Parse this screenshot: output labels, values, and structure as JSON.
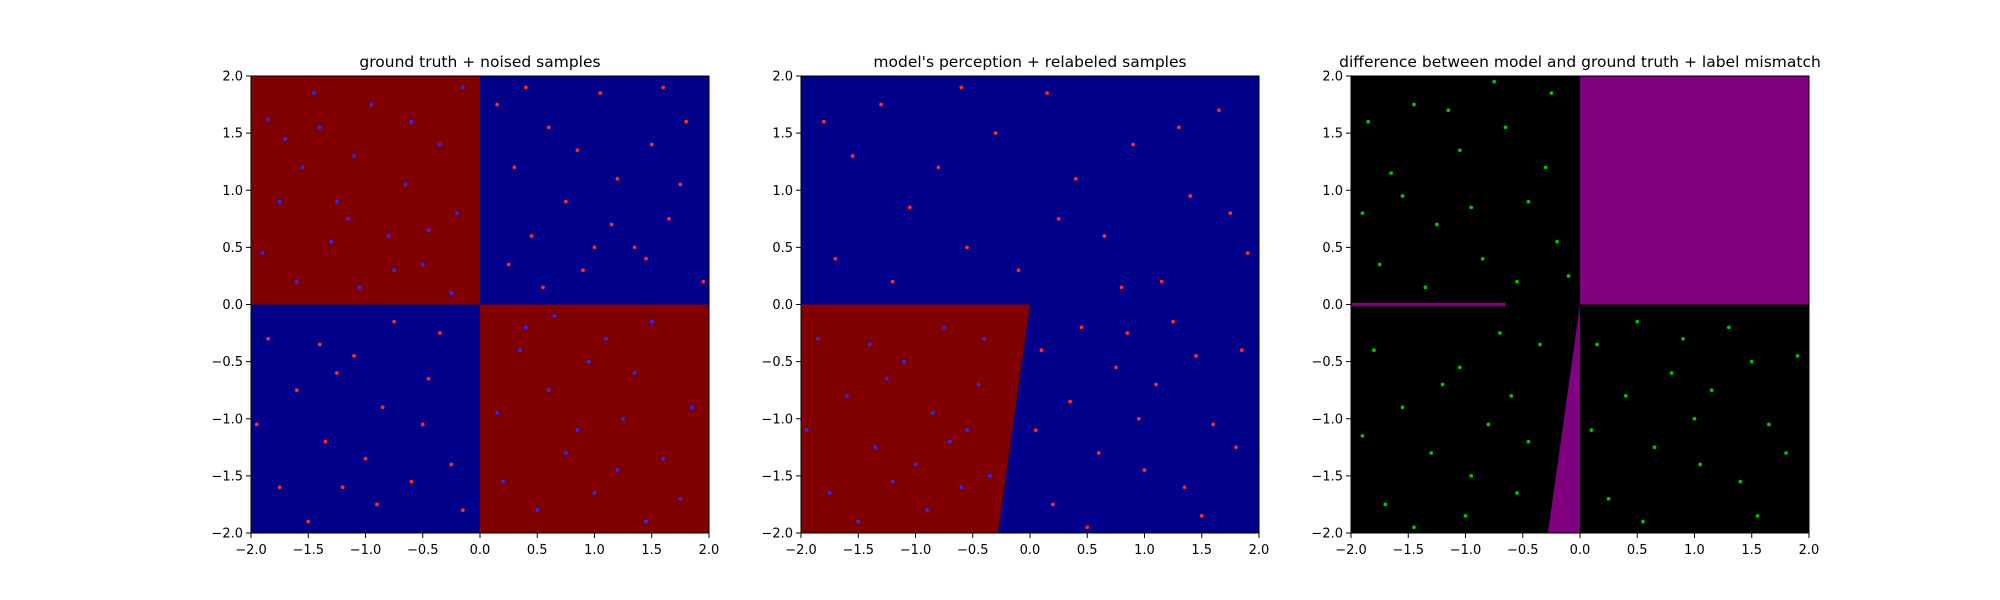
{
  "figure": {
    "background": "#ffffff"
  },
  "chart_data": [
    {
      "type": "scatter",
      "title": "ground truth + noised samples",
      "xlim": [
        -2.0,
        2.0
      ],
      "ylim": [
        -2.0,
        2.0
      ],
      "xticks": [
        "−2.0",
        "−1.5",
        "−1.0",
        "−0.5",
        "0.0",
        "0.5",
        "1.0",
        "1.5",
        "2.0"
      ],
      "yticks": [
        "−2.0",
        "−1.5",
        "−1.0",
        "−0.5",
        "0.0",
        "0.5",
        "1.0",
        "1.5",
        "2.0"
      ],
      "grid": false,
      "background_regions": [
        {
          "label": "red class",
          "color": "#800000",
          "polygon": [
            [
              -2,
              0
            ],
            [
              0,
              0
            ],
            [
              0,
              2
            ],
            [
              -2,
              2
            ]
          ]
        },
        {
          "label": "blue class",
          "color": "#00008b",
          "polygon": [
            [
              0,
              0
            ],
            [
              2,
              0
            ],
            [
              2,
              2
            ],
            [
              0,
              2
            ]
          ]
        },
        {
          "label": "blue class",
          "color": "#00008b",
          "polygon": [
            [
              -2,
              -2
            ],
            [
              0,
              -2
            ],
            [
              0,
              0
            ],
            [
              -2,
              0
            ]
          ]
        },
        {
          "label": "red class",
          "color": "#800000",
          "polygon": [
            [
              0,
              -2
            ],
            [
              2,
              -2
            ],
            [
              2,
              0
            ],
            [
              0,
              0
            ]
          ]
        }
      ],
      "series": [
        {
          "label": "blue",
          "color": "#2b2bff",
          "points": [
            [
              -1.85,
              1.62
            ],
            [
              -1.7,
              1.45
            ],
            [
              -1.55,
              1.2
            ],
            [
              -1.4,
              1.55
            ],
            [
              -1.25,
              0.9
            ],
            [
              -1.1,
              1.3
            ],
            [
              -0.95,
              1.75
            ],
            [
              -0.8,
              0.6
            ],
            [
              -0.65,
              1.05
            ],
            [
              -0.5,
              0.35
            ],
            [
              -0.35,
              1.4
            ],
            [
              -0.2,
              0.8
            ],
            [
              -1.9,
              0.45
            ],
            [
              -1.6,
              0.2
            ],
            [
              -1.3,
              0.55
            ],
            [
              -1.05,
              0.15
            ],
            [
              -0.75,
              0.3
            ],
            [
              -0.45,
              0.65
            ],
            [
              -0.25,
              0.1
            ],
            [
              -1.75,
              0.9
            ],
            [
              -1.15,
              0.75
            ],
            [
              -0.6,
              1.6
            ],
            [
              -0.15,
              1.9
            ],
            [
              -1.45,
              1.85
            ],
            [
              0.35,
              -0.4
            ],
            [
              0.6,
              -0.75
            ],
            [
              0.85,
              -1.1
            ],
            [
              1.1,
              -0.3
            ],
            [
              1.35,
              -0.6
            ],
            [
              1.6,
              -1.35
            ],
            [
              1.85,
              -0.9
            ],
            [
              0.2,
              -1.55
            ],
            [
              0.5,
              -1.8
            ],
            [
              0.75,
              -1.3
            ],
            [
              1.0,
              -1.65
            ],
            [
              1.25,
              -1.0
            ],
            [
              1.5,
              -0.15
            ],
            [
              1.75,
              -1.7
            ],
            [
              0.4,
              -0.2
            ],
            [
              0.95,
              -0.5
            ],
            [
              1.45,
              -1.9
            ],
            [
              0.15,
              -0.95
            ],
            [
              0.65,
              -0.1
            ],
            [
              1.2,
              -1.45
            ]
          ]
        },
        {
          "label": "red",
          "color": "#ff2a2a",
          "points": [
            [
              0.15,
              1.75
            ],
            [
              0.3,
              1.2
            ],
            [
              0.45,
              0.6
            ],
            [
              0.6,
              1.55
            ],
            [
              0.75,
              0.9
            ],
            [
              0.9,
              0.3
            ],
            [
              1.05,
              1.85
            ],
            [
              1.2,
              1.1
            ],
            [
              1.35,
              0.5
            ],
            [
              1.5,
              1.4
            ],
            [
              1.65,
              0.75
            ],
            [
              1.8,
              1.6
            ],
            [
              1.95,
              0.2
            ],
            [
              0.25,
              0.35
            ],
            [
              0.55,
              0.15
            ],
            [
              0.85,
              1.35
            ],
            [
              1.15,
              0.7
            ],
            [
              1.45,
              0.4
            ],
            [
              1.75,
              1.05
            ],
            [
              0.4,
              1.9
            ],
            [
              1.0,
              0.5
            ],
            [
              1.6,
              1.9
            ],
            [
              -1.85,
              -0.3
            ],
            [
              -1.6,
              -0.75
            ],
            [
              -1.35,
              -1.2
            ],
            [
              -1.1,
              -0.45
            ],
            [
              -0.85,
              -0.9
            ],
            [
              -0.6,
              -1.55
            ],
            [
              -0.35,
              -0.25
            ],
            [
              -0.15,
              -1.8
            ],
            [
              -1.75,
              -1.6
            ],
            [
              -1.5,
              -1.9
            ],
            [
              -1.25,
              -0.6
            ],
            [
              -1.0,
              -1.35
            ],
            [
              -0.75,
              -0.15
            ],
            [
              -0.5,
              -1.05
            ],
            [
              -0.25,
              -1.4
            ],
            [
              -1.95,
              -1.05
            ],
            [
              -1.4,
              -0.35
            ],
            [
              -0.9,
              -1.75
            ],
            [
              -0.45,
              -0.65
            ],
            [
              -1.2,
              -1.6
            ]
          ]
        }
      ]
    },
    {
      "type": "scatter",
      "title": "model's perception + relabeled samples",
      "xlim": [
        -2.0,
        2.0
      ],
      "ylim": [
        -2.0,
        2.0
      ],
      "xticks": [
        "−2.0",
        "−1.5",
        "−1.0",
        "−0.5",
        "0.0",
        "0.5",
        "1.0",
        "1.5",
        "2.0"
      ],
      "yticks": [
        "−2.0",
        "−1.5",
        "−1.0",
        "−0.5",
        "0.0",
        "0.5",
        "1.0",
        "1.5",
        "2.0"
      ],
      "grid": false,
      "background_regions": [
        {
          "label": "blue class",
          "color": "#00008b",
          "polygon": [
            [
              -2,
              -2
            ],
            [
              2,
              -2
            ],
            [
              2,
              2
            ],
            [
              -2,
              2
            ]
          ]
        },
        {
          "label": "red class",
          "color": "#800000",
          "polygon": [
            [
              -2,
              -2
            ],
            [
              -0.28,
              -2
            ],
            [
              0.0,
              0.0
            ],
            [
              -2,
              0.0
            ]
          ]
        }
      ],
      "series": [
        {
          "label": "red",
          "color": "#ff2a2a",
          "points": [
            [
              -1.8,
              1.6
            ],
            [
              -1.55,
              1.3
            ],
            [
              -1.3,
              1.75
            ],
            [
              -1.05,
              0.85
            ],
            [
              -0.8,
              1.2
            ],
            [
              -0.55,
              0.5
            ],
            [
              -0.3,
              1.5
            ],
            [
              -0.1,
              0.3
            ],
            [
              0.15,
              1.85
            ],
            [
              0.4,
              1.1
            ],
            [
              0.65,
              0.6
            ],
            [
              0.9,
              1.4
            ],
            [
              1.15,
              0.2
            ],
            [
              1.4,
              0.95
            ],
            [
              1.65,
              1.7
            ],
            [
              1.9,
              0.45
            ],
            [
              -1.7,
              0.4
            ],
            [
              -1.2,
              0.2
            ],
            [
              -0.6,
              1.9
            ],
            [
              0.25,
              0.75
            ],
            [
              0.8,
              0.15
            ],
            [
              1.3,
              1.55
            ],
            [
              1.75,
              0.8
            ],
            [
              0.1,
              -0.4
            ],
            [
              0.35,
              -0.85
            ],
            [
              0.6,
              -1.3
            ],
            [
              0.85,
              -0.25
            ],
            [
              1.1,
              -0.7
            ],
            [
              1.35,
              -1.6
            ],
            [
              1.6,
              -1.05
            ],
            [
              1.85,
              -0.4
            ],
            [
              0.2,
              -1.75
            ],
            [
              0.5,
              -1.95
            ],
            [
              0.75,
              -0.55
            ],
            [
              1.0,
              -1.45
            ],
            [
              1.25,
              -0.15
            ],
            [
              1.5,
              -1.85
            ],
            [
              1.8,
              -1.25
            ],
            [
              0.05,
              -1.1
            ],
            [
              0.45,
              -0.2
            ],
            [
              0.95,
              -1.0
            ],
            [
              1.45,
              -0.45
            ]
          ]
        },
        {
          "label": "blue",
          "color": "#2b2bff",
          "points": [
            [
              -1.85,
              -0.3
            ],
            [
              -1.6,
              -0.8
            ],
            [
              -1.35,
              -1.25
            ],
            [
              -1.1,
              -0.5
            ],
            [
              -0.85,
              -0.95
            ],
            [
              -0.6,
              -1.6
            ],
            [
              -0.4,
              -0.3
            ],
            [
              -1.75,
              -1.65
            ],
            [
              -1.5,
              -1.9
            ],
            [
              -1.25,
              -0.65
            ],
            [
              -1.0,
              -1.4
            ],
            [
              -0.75,
              -0.2
            ],
            [
              -0.55,
              -1.1
            ],
            [
              -0.35,
              -1.5
            ],
            [
              -1.95,
              -1.1
            ],
            [
              -1.4,
              -0.35
            ],
            [
              -0.9,
              -1.8
            ],
            [
              -0.45,
              -0.7
            ],
            [
              -1.2,
              -1.55
            ],
            [
              -0.7,
              -1.2
            ]
          ]
        }
      ]
    },
    {
      "type": "scatter",
      "title": "difference between model and ground truth + label mismatch",
      "xlim": [
        -2.0,
        2.0
      ],
      "ylim": [
        -2.0,
        2.0
      ],
      "xticks": [
        "−2.0",
        "−1.5",
        "−1.0",
        "−0.5",
        "0.0",
        "0.5",
        "1.0",
        "1.5",
        "2.0"
      ],
      "yticks": [
        "−2.0",
        "−1.5",
        "−1.0",
        "−0.5",
        "0.0",
        "0.5",
        "1.0",
        "1.5",
        "2.0"
      ],
      "grid": false,
      "background_regions": [
        {
          "label": "agreement",
          "color": "#000000",
          "polygon": [
            [
              -2,
              -2
            ],
            [
              2,
              -2
            ],
            [
              2,
              2
            ],
            [
              -2,
              2
            ]
          ]
        },
        {
          "label": "difference",
          "color": "#800080",
          "polygon": [
            [
              0,
              0
            ],
            [
              2,
              0
            ],
            [
              2,
              2
            ],
            [
              0,
              2
            ]
          ]
        },
        {
          "label": "difference",
          "color": "#800080",
          "polygon": [
            [
              -0.28,
              -2
            ],
            [
              0.0,
              -2
            ],
            [
              0.0,
              0.0
            ]
          ]
        },
        {
          "label": "difference",
          "color": "#800080",
          "polygon": [
            [
              -2,
              -0.015
            ],
            [
              -0.65,
              -0.015
            ],
            [
              -0.65,
              0.015
            ],
            [
              -2,
              0.015
            ]
          ]
        }
      ],
      "series": [
        {
          "label": "mismatch",
          "color": "#00c000",
          "points": [
            [
              -1.85,
              1.6
            ],
            [
              -1.65,
              1.15
            ],
            [
              -1.45,
              1.75
            ],
            [
              -1.25,
              0.7
            ],
            [
              -1.05,
              1.35
            ],
            [
              -0.85,
              0.4
            ],
            [
              -0.65,
              1.55
            ],
            [
              -0.45,
              0.9
            ],
            [
              -0.25,
              1.85
            ],
            [
              -0.1,
              0.25
            ],
            [
              -1.75,
              0.35
            ],
            [
              -1.35,
              0.15
            ],
            [
              -0.95,
              0.85
            ],
            [
              -0.55,
              0.2
            ],
            [
              -0.3,
              1.2
            ],
            [
              -1.55,
              0.95
            ],
            [
              -0.75,
              1.95
            ],
            [
              -1.15,
              1.7
            ],
            [
              -1.9,
              0.8
            ],
            [
              -0.2,
              0.55
            ],
            [
              -1.8,
              -0.4
            ],
            [
              -1.55,
              -0.9
            ],
            [
              -1.3,
              -1.3
            ],
            [
              -1.05,
              -0.55
            ],
            [
              -0.8,
              -1.05
            ],
            [
              -0.55,
              -1.65
            ],
            [
              -0.35,
              -0.35
            ],
            [
              -1.7,
              -1.75
            ],
            [
              -1.45,
              -1.95
            ],
            [
              -1.2,
              -0.7
            ],
            [
              -0.95,
              -1.5
            ],
            [
              -0.7,
              -0.25
            ],
            [
              -0.45,
              -1.2
            ],
            [
              -1.9,
              -1.15
            ],
            [
              -1.0,
              -1.85
            ],
            [
              -0.6,
              -0.8
            ],
            [
              0.15,
              -0.35
            ],
            [
              0.4,
              -0.8
            ],
            [
              0.65,
              -1.25
            ],
            [
              0.9,
              -0.3
            ],
            [
              1.15,
              -0.75
            ],
            [
              1.4,
              -1.55
            ],
            [
              1.65,
              -1.05
            ],
            [
              1.9,
              -0.45
            ],
            [
              0.25,
              -1.7
            ],
            [
              0.55,
              -1.9
            ],
            [
              0.8,
              -0.6
            ],
            [
              1.05,
              -1.4
            ],
            [
              1.3,
              -0.2
            ],
            [
              1.55,
              -1.85
            ],
            [
              1.8,
              -1.3
            ],
            [
              0.1,
              -1.1
            ],
            [
              0.5,
              -0.15
            ],
            [
              1.0,
              -1.0
            ],
            [
              1.5,
              -0.5
            ]
          ]
        }
      ]
    }
  ]
}
